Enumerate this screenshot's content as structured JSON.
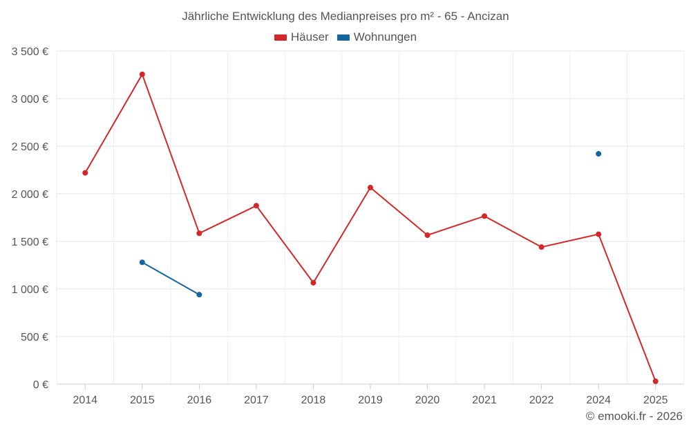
{
  "chart_data": {
    "type": "line",
    "title": "Jährliche Entwicklung des Medianpreises pro m² - 65 - Ancizan",
    "xlabel": "",
    "ylabel": "",
    "categories": [
      "2014",
      "2015",
      "2016",
      "2017",
      "2018",
      "2019",
      "2020",
      "2021",
      "2022",
      "2024",
      "2025"
    ],
    "ylim": [
      0,
      3500
    ],
    "yticks": [
      0,
      500,
      1000,
      1500,
      2000,
      2500,
      3000,
      3500
    ],
    "ytick_labels": [
      "0 €",
      "500 €",
      "1 000 €",
      "1 500 €",
      "2 000 €",
      "2 500 €",
      "3 000 €",
      "3 500 €"
    ],
    "grid": true,
    "legend_position": "top-center",
    "series": [
      {
        "name": "Häuser",
        "color": "#d62728",
        "values": [
          2220,
          3255,
          1585,
          1875,
          1065,
          2065,
          1565,
          1765,
          1440,
          1575,
          30
        ]
      },
      {
        "name": "Wohnungen",
        "color": "#1565a0",
        "values": [
          null,
          1280,
          940,
          null,
          null,
          null,
          null,
          null,
          null,
          2420,
          null
        ]
      }
    ]
  },
  "credit": "© emooki.fr - 2026"
}
